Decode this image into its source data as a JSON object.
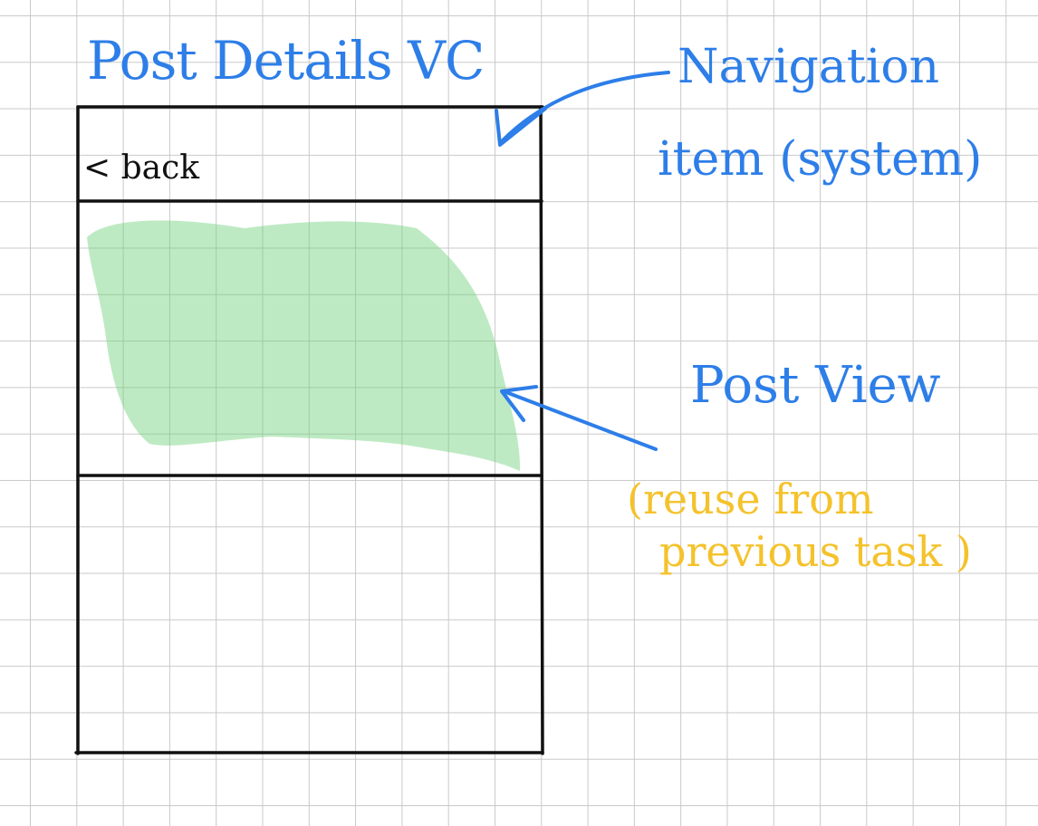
{
  "diagram": {
    "title": "Post Details VC",
    "navigation_label_line1": "Navigation",
    "navigation_label_line2": "item (system)",
    "back_label": "< back",
    "post_view_label": "Post View",
    "reuse_label_line1": "(reuse from",
    "reuse_label_line2": "previous task )"
  },
  "colors": {
    "ink_blue": "#2d7ee8",
    "ink_black": "#111111",
    "ink_yellow": "#f4c22b",
    "highlight_green": "#6fd17a",
    "grid": "#c9c9c9"
  }
}
